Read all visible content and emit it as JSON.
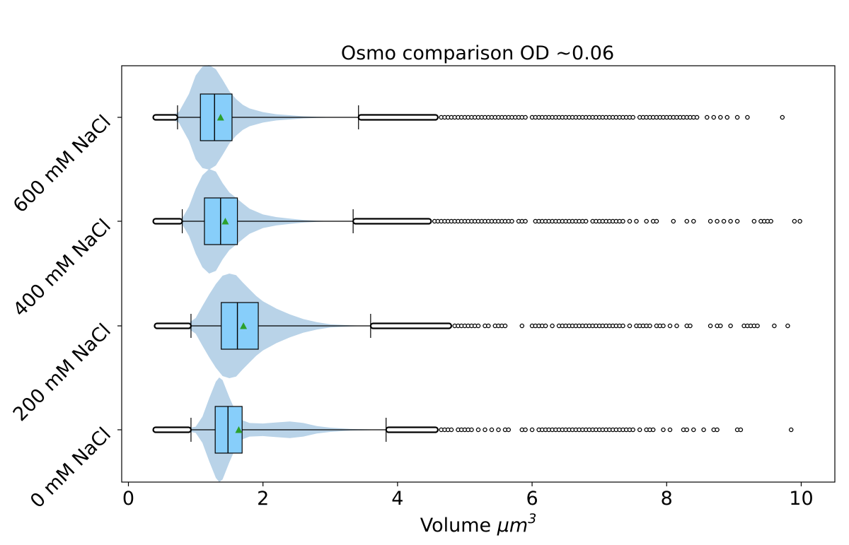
{
  "chart_data": {
    "type": "violin-box",
    "orientation": "horizontal",
    "title": "Osmo comparison OD ~0.06",
    "xlabel_text": "Volume ",
    "xlabel_math": "μm",
    "xlabel_exp": "3",
    "ylabel": "",
    "xlim": [
      -0.1,
      10.5
    ],
    "xticks": [
      0,
      2,
      4,
      6,
      8,
      10
    ],
    "xtick_labels": [
      "0",
      "2",
      "4",
      "6",
      "8",
      "10"
    ],
    "grid": false,
    "legend": "none",
    "categories": [
      "0 mM NaCl",
      "200 mM NaCl",
      "400 mM NaCl",
      "600 mM NaCl"
    ],
    "colors": {
      "violin": "#b9d3e8",
      "box": "#87cefa",
      "mean_marker": "#2ca02c",
      "lines": "#000000"
    },
    "groups": [
      {
        "label": "0 mM NaCl",
        "box": {
          "whislo": 0.93,
          "q1": 1.29,
          "median": 1.48,
          "q3": 1.69,
          "whishi": 3.83,
          "mean": 1.64
        },
        "dense_fliers_low": [
          0.4,
          0.93
        ],
        "dense_fliers_high": [
          3.83,
          4.6
        ],
        "fliers": [
          4.65,
          4.7,
          4.75,
          4.8,
          4.9,
          4.95,
          5.0,
          5.05,
          5.1,
          5.2,
          5.3,
          5.4,
          5.5,
          5.6,
          5.65,
          5.85,
          5.9,
          6.0,
          6.1,
          6.15,
          6.2,
          6.25,
          6.3,
          6.35,
          6.4,
          6.45,
          6.5,
          6.55,
          6.6,
          6.65,
          6.7,
          6.75,
          6.8,
          6.85,
          6.9,
          6.95,
          7.0,
          7.05,
          7.1,
          7.15,
          7.2,
          7.25,
          7.3,
          7.35,
          7.4,
          7.45,
          7.5,
          7.6,
          7.7,
          7.75,
          7.8,
          7.95,
          8.05,
          8.25,
          8.3,
          8.4,
          8.55,
          8.7,
          8.75,
          9.05,
          9.1,
          9.85
        ],
        "violin": {
          "x": [
            0.4,
            0.6,
            0.8,
            1.0,
            1.1,
            1.2,
            1.3,
            1.35,
            1.4,
            1.5,
            1.6,
            1.7,
            1.8,
            2.0,
            2.2,
            2.4,
            2.6,
            2.8,
            3.0,
            3.3,
            3.83
          ],
          "w": [
            0.0,
            0.0,
            0.01,
            0.06,
            0.25,
            0.6,
            0.92,
            1.0,
            0.95,
            0.62,
            0.33,
            0.18,
            0.13,
            0.12,
            0.14,
            0.16,
            0.13,
            0.07,
            0.04,
            0.015,
            0.0
          ]
        }
      },
      {
        "label": "200 mM NaCl",
        "box": {
          "whislo": 0.93,
          "q1": 1.38,
          "median": 1.62,
          "q3": 1.93,
          "whishi": 3.6,
          "mean": 1.71
        },
        "dense_fliers_low": [
          0.42,
          0.93
        ],
        "dense_fliers_high": [
          3.6,
          4.8
        ],
        "fliers": [
          4.85,
          4.9,
          4.95,
          5.0,
          5.05,
          5.1,
          5.15,
          5.2,
          5.3,
          5.35,
          5.45,
          5.5,
          5.55,
          5.6,
          5.85,
          6.0,
          6.05,
          6.1,
          6.15,
          6.2,
          6.3,
          6.4,
          6.45,
          6.5,
          6.55,
          6.6,
          6.65,
          6.7,
          6.75,
          6.8,
          6.85,
          6.9,
          6.95,
          7.0,
          7.05,
          7.1,
          7.15,
          7.2,
          7.25,
          7.3,
          7.35,
          7.45,
          7.55,
          7.6,
          7.65,
          7.7,
          7.75,
          7.85,
          7.9,
          7.95,
          8.05,
          8.15,
          8.3,
          8.35,
          8.65,
          8.75,
          8.8,
          8.95,
          9.15,
          9.2,
          9.25,
          9.3,
          9.35,
          9.6,
          9.8
        ],
        "violin": {
          "x": [
            0.42,
            0.7,
            0.9,
            1.0,
            1.1,
            1.2,
            1.3,
            1.4,
            1.5,
            1.6,
            1.7,
            1.8,
            1.9,
            2.0,
            2.2,
            2.4,
            2.6,
            2.8,
            3.0,
            3.3,
            3.6
          ],
          "w": [
            0.0,
            0.01,
            0.06,
            0.15,
            0.38,
            0.6,
            0.8,
            0.96,
            1.0,
            0.97,
            0.83,
            0.7,
            0.57,
            0.47,
            0.33,
            0.22,
            0.13,
            0.07,
            0.03,
            0.01,
            0.0
          ]
        }
      },
      {
        "label": "400 mM NaCl",
        "box": {
          "whislo": 0.8,
          "q1": 1.13,
          "median": 1.37,
          "q3": 1.62,
          "whishi": 3.34,
          "mean": 1.44
        },
        "dense_fliers_low": [
          0.4,
          0.8
        ],
        "dense_fliers_high": [
          3.34,
          4.5
        ],
        "fliers": [
          4.55,
          4.6,
          4.65,
          4.7,
          4.75,
          4.8,
          4.85,
          4.9,
          4.95,
          5.0,
          5.05,
          5.1,
          5.15,
          5.2,
          5.25,
          5.3,
          5.35,
          5.4,
          5.45,
          5.5,
          5.55,
          5.6,
          5.65,
          5.7,
          5.8,
          5.85,
          5.9,
          6.05,
          6.1,
          6.15,
          6.2,
          6.25,
          6.3,
          6.35,
          6.4,
          6.45,
          6.5,
          6.55,
          6.6,
          6.65,
          6.7,
          6.75,
          6.8,
          6.9,
          6.95,
          7.0,
          7.05,
          7.1,
          7.15,
          7.2,
          7.25,
          7.3,
          7.35,
          7.45,
          7.55,
          7.7,
          7.8,
          7.85,
          8.1,
          8.3,
          8.4,
          8.65,
          8.75,
          8.85,
          8.95,
          9.05,
          9.3,
          9.4,
          9.45,
          9.5,
          9.55,
          9.9,
          9.98
        ],
        "violin": {
          "x": [
            0.4,
            0.6,
            0.8,
            0.9,
            1.0,
            1.1,
            1.2,
            1.3,
            1.4,
            1.5,
            1.6,
            1.7,
            1.8,
            2.0,
            2.2,
            2.4,
            2.6,
            2.8,
            3.0,
            3.34
          ],
          "w": [
            0.0,
            0.005,
            0.06,
            0.28,
            0.62,
            0.88,
            1.0,
            0.95,
            0.73,
            0.55,
            0.45,
            0.34,
            0.24,
            0.13,
            0.08,
            0.05,
            0.025,
            0.01,
            0.004,
            0.0
          ]
        }
      },
      {
        "label": "600 mM NaCl",
        "box": {
          "whislo": 0.73,
          "q1": 1.07,
          "median": 1.28,
          "q3": 1.54,
          "whishi": 3.42,
          "mean": 1.37
        },
        "dense_fliers_low": [
          0.4,
          0.73
        ],
        "dense_fliers_high": [
          3.42,
          4.6
        ],
        "fliers": [
          4.65,
          4.7,
          4.75,
          4.8,
          4.85,
          4.9,
          4.95,
          5.0,
          5.05,
          5.1,
          5.15,
          5.2,
          5.25,
          5.3,
          5.35,
          5.4,
          5.45,
          5.5,
          5.55,
          5.6,
          5.65,
          5.7,
          5.75,
          5.8,
          5.85,
          5.9,
          6.0,
          6.05,
          6.1,
          6.15,
          6.2,
          6.25,
          6.3,
          6.35,
          6.4,
          6.45,
          6.5,
          6.55,
          6.6,
          6.65,
          6.7,
          6.75,
          6.8,
          6.85,
          6.9,
          6.95,
          7.0,
          7.05,
          7.1,
          7.15,
          7.2,
          7.25,
          7.3,
          7.35,
          7.4,
          7.45,
          7.5,
          7.6,
          7.65,
          7.7,
          7.75,
          7.8,
          7.85,
          7.9,
          7.95,
          8.0,
          8.05,
          8.1,
          8.15,
          8.2,
          8.25,
          8.3,
          8.35,
          8.4,
          8.45,
          8.6,
          8.7,
          8.8,
          8.9,
          9.05,
          9.2,
          9.72
        ],
        "violin": {
          "x": [
            0.4,
            0.6,
            0.75,
            0.9,
            1.0,
            1.1,
            1.2,
            1.3,
            1.4,
            1.5,
            1.6,
            1.7,
            1.8,
            2.0,
            2.2,
            2.4,
            2.6,
            2.8,
            3.0,
            3.42
          ],
          "w": [
            0.0,
            0.01,
            0.1,
            0.45,
            0.8,
            0.97,
            1.0,
            0.92,
            0.72,
            0.5,
            0.35,
            0.24,
            0.17,
            0.1,
            0.06,
            0.04,
            0.02,
            0.01,
            0.005,
            0.0
          ]
        }
      }
    ]
  }
}
